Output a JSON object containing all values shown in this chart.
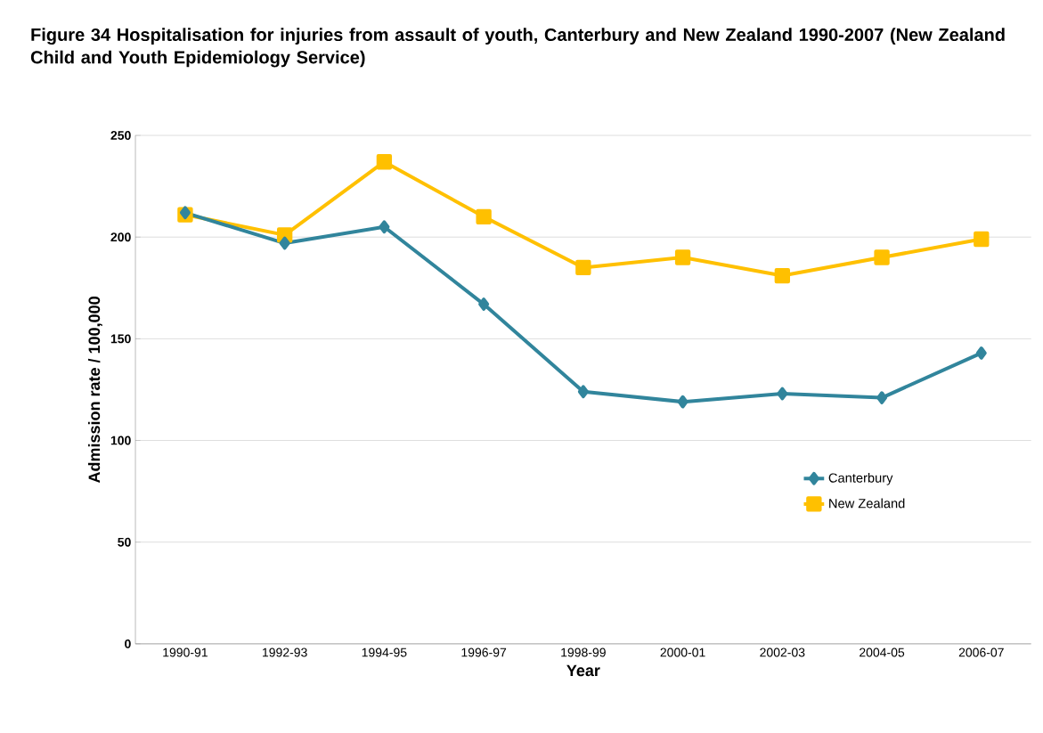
{
  "chart_data": {
    "type": "line",
    "title": "Figure 34 Hospitalisation for injuries from assault of youth, Canterbury and New Zealand 1990-2007 (New Zealand Child and Youth Epidemiology Service)",
    "xlabel": "Year",
    "ylabel": "Admission rate / 100,000",
    "categories": [
      "1990-91",
      "1992-93",
      "1994-95",
      "1996-97",
      "1998-99",
      "2000-01",
      "2002-03",
      "2004-05",
      "2006-07"
    ],
    "series": [
      {
        "name": "Canterbury",
        "color": "#31859c",
        "marker": "diamond",
        "values": [
          212,
          197,
          205,
          167,
          124,
          119,
          123,
          121,
          143
        ]
      },
      {
        "name": "New Zealand",
        "color": "#ffc000",
        "marker": "square",
        "values": [
          211,
          201,
          237,
          210,
          185,
          190,
          181,
          190,
          199
        ]
      }
    ],
    "ylim": [
      0,
      250
    ],
    "yticks": [
      0,
      50,
      100,
      150,
      200,
      250
    ],
    "grid": "y",
    "legend": "right",
    "line_style": "solid"
  }
}
